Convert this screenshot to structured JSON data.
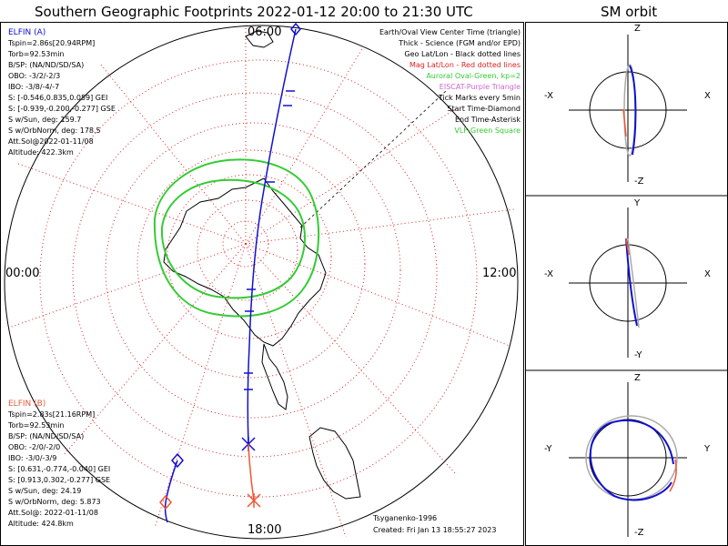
{
  "title": "Southern Geographic Footprints 2022-01-12 20:00 to 21:30 UTC",
  "sm_title": "SM orbit",
  "colors": {
    "elfin_a": "#1010d0",
    "elfin_b": "#e06040",
    "oval": "#33cc33",
    "grid_red": "#dd2222",
    "trace_b": "#ee5533"
  },
  "main_map": {
    "time_labels": {
      "top": "06:00",
      "left": "00:00",
      "right": "12:00",
      "bottom": "18:00"
    }
  },
  "elfin_a": {
    "name": "ELFIN (A)",
    "lines": [
      "Tspin=2.86s[20.94RPM]",
      "Torb=92.53min",
      "B/SP: (NA/ND/SD/SA)",
      "OBO: -3/2/-2/3",
      "IBO: -3/8/-4/-7",
      "S: [-0.546,0.835,0.059] GEI",
      "S: [-0.939,-0.200,-0.277] GSE",
      "S w/Sun, deg: 159.7",
      "S w/OrbNorm, deg: 178.5",
      "Att.Sol@2022-01-11/08",
      "Altitude: 422.3km"
    ]
  },
  "elfin_b": {
    "name": "ELFIN (B)",
    "lines": [
      "Tspin=2.83s[21.16RPM]",
      "Torb=92.53min",
      "B/SP: (NA/ND/SD/SA)",
      "OBO: -2/0/-2/0",
      "IBO: -3/0/-3/9",
      "S: [0.631,-0.774,-0.040] GEI",
      "S: [0.913,0.302,-0.277] GSE",
      "S w/Sun, deg: 24.19",
      "S w/OrbNorm, deg: 5.873",
      "Att.Sol@: 2022-01-11/08",
      "Altitude: 424.8km"
    ]
  },
  "legend": [
    {
      "text": "Earth/Oval View Center Time (triangle)",
      "color": "#000000"
    },
    {
      "text": "Thick - Science (FGM and/or EPD)",
      "color": "#000000"
    },
    {
      "text": "Geo Lat/Lon - Black dotted lines",
      "color": "#000000"
    },
    {
      "text": "Mag Lat/Lon - Red dotted lines",
      "color": "#dd2222"
    },
    {
      "text": "Auroral Oval-Green, kp=2",
      "color": "#33cc33"
    },
    {
      "text": "EISCAT-Purple Triangle",
      "color": "#cc66cc"
    },
    {
      "text": "Tick Marks every 5min",
      "color": "#000000"
    },
    {
      "text": "Start Time-Diamond",
      "color": "#000000"
    },
    {
      "text": "End Time-Asterisk",
      "color": "#000000"
    },
    {
      "text": "VLF-Green Square",
      "color": "#33cc33"
    }
  ],
  "credits": {
    "author": "Tsyganenko-1996",
    "created": "Created: Fri Jan 13 18:55:27 2023"
  },
  "sm_panels": [
    {
      "top": "Z",
      "bottom": "-Z",
      "left": "-X",
      "right": "X"
    },
    {
      "top": "Y",
      "bottom": "-Y",
      "left": "-X",
      "right": "X"
    },
    {
      "top": "Z",
      "bottom": "-Z",
      "left": "-Y",
      "right": "Y"
    }
  ]
}
